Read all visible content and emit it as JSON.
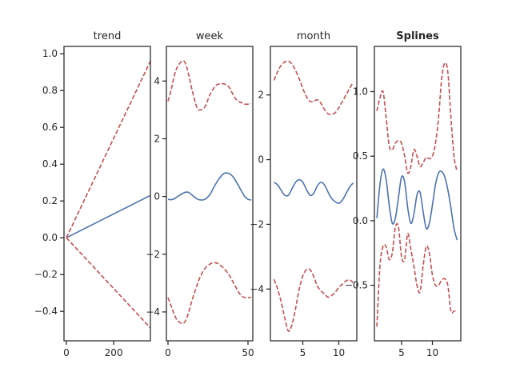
{
  "chart_data": [
    {
      "type": "line",
      "title": "trend",
      "xlim": [
        -10,
        355
      ],
      "ylim": [
        -0.56,
        1.04
      ],
      "xticks": [
        0,
        200
      ],
      "yticks": [
        -0.4,
        -0.2,
        0.0,
        0.2,
        0.4,
        0.6,
        0.8,
        1.0
      ],
      "series": [
        {
          "role": "mean",
          "style": "solid",
          "color": "#4c72b0",
          "x": [
            0,
            355
          ],
          "y": [
            0.0,
            0.23
          ]
        },
        {
          "role": "upper",
          "style": "dashed",
          "color": "#c44e52",
          "x": [
            0,
            355
          ],
          "y": [
            0.0,
            0.96
          ]
        },
        {
          "role": "lower",
          "style": "dashed",
          "color": "#c44e52",
          "x": [
            0,
            355
          ],
          "y": [
            0.0,
            -0.49
          ]
        }
      ]
    },
    {
      "type": "line",
      "title": "week",
      "xlim": [
        -1,
        53
      ],
      "ylim": [
        -5.0,
        5.2
      ],
      "xticks": [
        0,
        50
      ],
      "yticks": [
        -4,
        -2,
        0,
        2,
        4
      ],
      "series": [
        {
          "role": "mean",
          "style": "solid",
          "color": "#4c72b0",
          "x": [
            0,
            2,
            4,
            6,
            9,
            11,
            13,
            15,
            18,
            20,
            23,
            26,
            28,
            30,
            32,
            35,
            38,
            40,
            42,
            44,
            46,
            48,
            50,
            52
          ],
          "y": [
            -0.1,
            -0.11,
            -0.08,
            0.0,
            0.1,
            0.15,
            0.14,
            0.05,
            -0.08,
            -0.12,
            -0.1,
            0.05,
            0.25,
            0.45,
            0.62,
            0.8,
            0.8,
            0.72,
            0.57,
            0.38,
            0.18,
            0.0,
            -0.1,
            -0.12
          ]
        },
        {
          "role": "upper",
          "style": "dashed",
          "color": "#c44e52",
          "x": [
            0,
            2,
            4,
            6,
            9,
            11,
            13,
            15,
            18,
            20,
            23,
            26,
            28,
            30,
            32,
            35,
            38,
            40,
            42,
            44,
            46,
            48,
            50,
            52
          ],
          "y": [
            3.3,
            3.7,
            4.2,
            4.5,
            4.7,
            4.6,
            4.2,
            3.7,
            3.1,
            3.0,
            3.1,
            3.5,
            3.7,
            3.85,
            3.9,
            3.9,
            3.8,
            3.6,
            3.4,
            3.3,
            3.25,
            3.2,
            3.2,
            3.22
          ]
        },
        {
          "role": "lower",
          "style": "dashed",
          "color": "#c44e52",
          "x": [
            0,
            2,
            4,
            6,
            9,
            11,
            13,
            15,
            18,
            20,
            23,
            26,
            28,
            30,
            32,
            35,
            38,
            40,
            42,
            44,
            46,
            48,
            50,
            52
          ],
          "y": [
            -3.5,
            -3.8,
            -4.1,
            -4.3,
            -4.4,
            -4.3,
            -4.0,
            -3.6,
            -3.1,
            -2.8,
            -2.5,
            -2.35,
            -2.3,
            -2.3,
            -2.35,
            -2.5,
            -2.7,
            -2.9,
            -3.1,
            -3.3,
            -3.45,
            -3.5,
            -3.5,
            -3.5
          ]
        }
      ]
    },
    {
      "type": "line",
      "title": "month",
      "xlim": [
        0.5,
        12.5
      ],
      "ylim": [
        -5.6,
        3.5
      ],
      "xticks": [
        5,
        10
      ],
      "yticks": [
        -4,
        -2,
        0,
        2
      ],
      "series": [
        {
          "role": "mean",
          "style": "solid",
          "color": "#4c72b0",
          "x": [
            1,
            1.5,
            2,
            2.5,
            3,
            3.5,
            4,
            4.5,
            5,
            5.5,
            6,
            6.5,
            7,
            7.5,
            8,
            8.5,
            9,
            9.5,
            10,
            10.5,
            11,
            11.5,
            12
          ],
          "y": [
            -0.7,
            -0.78,
            -0.95,
            -1.1,
            -1.1,
            -0.9,
            -0.7,
            -0.62,
            -0.7,
            -0.92,
            -1.1,
            -1.05,
            -0.82,
            -0.7,
            -0.78,
            -1.0,
            -1.2,
            -1.3,
            -1.35,
            -1.25,
            -1.05,
            -0.85,
            -0.72
          ]
        },
        {
          "role": "upper",
          "style": "dashed",
          "color": "#c44e52",
          "x": [
            1,
            1.5,
            2,
            2.5,
            3,
            3.5,
            4,
            4.5,
            5,
            5.5,
            6,
            6.5,
            7,
            7.5,
            8,
            8.5,
            9,
            9.5,
            10,
            10.5,
            11,
            11.5,
            12
          ],
          "y": [
            2.45,
            2.72,
            2.92,
            3.02,
            3.05,
            2.95,
            2.75,
            2.5,
            2.2,
            1.95,
            1.8,
            1.8,
            1.85,
            1.75,
            1.55,
            1.42,
            1.4,
            1.45,
            1.6,
            1.8,
            2.0,
            2.2,
            2.4
          ]
        },
        {
          "role": "lower",
          "style": "dashed",
          "color": "#c44e52",
          "x": [
            1,
            1.5,
            2,
            2.5,
            3,
            3.5,
            4,
            4.5,
            5,
            5.5,
            6,
            6.5,
            7,
            7.5,
            8,
            8.5,
            9,
            9.5,
            10,
            10.5,
            11,
            11.5,
            12
          ],
          "y": [
            -3.7,
            -4.0,
            -4.4,
            -4.9,
            -5.3,
            -5.1,
            -4.6,
            -4.0,
            -3.6,
            -3.4,
            -3.4,
            -3.6,
            -3.9,
            -4.05,
            -4.15,
            -4.25,
            -4.2,
            -4.1,
            -3.95,
            -3.85,
            -3.75,
            -3.72,
            -3.8
          ]
        }
      ]
    },
    {
      "type": "line",
      "title": "Splines",
      "title_bold": true,
      "xlim": [
        0.6,
        14.6
      ],
      "ylim": [
        -0.93,
        1.35
      ],
      "xticks": [
        5,
        10
      ],
      "yticks": [
        -0.5,
        0.0,
        0.5,
        1.0
      ],
      "series": [
        {
          "role": "mean",
          "style": "solid",
          "color": "#4c72b0",
          "x": [
            1.0,
            1.5,
            2.0,
            2.5,
            3.0,
            3.5,
            4.0,
            4.5,
            5.0,
            5.5,
            6.0,
            6.5,
            7.0,
            7.5,
            8.0,
            8.5,
            9.0,
            9.5,
            10.0,
            10.5,
            11.0,
            11.5,
            12.0,
            12.5,
            13.0,
            13.5,
            14.0
          ],
          "y": [
            0.02,
            0.28,
            0.4,
            0.32,
            0.12,
            -0.02,
            0.02,
            0.18,
            0.34,
            0.3,
            0.1,
            -0.02,
            0.05,
            0.2,
            0.22,
            0.07,
            -0.06,
            -0.02,
            0.12,
            0.28,
            0.37,
            0.38,
            0.34,
            0.24,
            0.1,
            -0.06,
            -0.15
          ]
        },
        {
          "role": "upper",
          "style": "dashed",
          "color": "#c44e52",
          "x": [
            1.0,
            1.5,
            2.0,
            2.5,
            3.0,
            3.5,
            4.0,
            4.5,
            5.0,
            5.5,
            6.0,
            6.5,
            7.0,
            7.5,
            8.0,
            8.5,
            9.0,
            9.5,
            10.0,
            10.5,
            11.0,
            11.5,
            12.0,
            12.5,
            13.0,
            13.5,
            14.0
          ],
          "y": [
            0.85,
            0.95,
            1.0,
            0.8,
            0.58,
            0.55,
            0.6,
            0.62,
            0.6,
            0.5,
            0.37,
            0.42,
            0.55,
            0.5,
            0.42,
            0.45,
            0.49,
            0.48,
            0.5,
            0.6,
            0.8,
            1.1,
            1.22,
            1.15,
            0.8,
            0.5,
            0.38
          ]
        },
        {
          "role": "lower",
          "style": "dashed",
          "color": "#c44e52",
          "x": [
            1.0,
            1.5,
            2.0,
            2.5,
            3.0,
            3.5,
            4.0,
            4.5,
            5.0,
            5.5,
            6.0,
            6.5,
            7.0,
            7.5,
            8.0,
            8.5,
            9.0,
            9.5,
            10.0,
            10.5,
            11.0,
            11.5,
            12.0,
            12.5,
            13.0,
            13.5,
            14.0
          ],
          "y": [
            -0.82,
            -0.35,
            -0.2,
            -0.2,
            -0.3,
            -0.25,
            -0.05,
            -0.05,
            -0.28,
            -0.3,
            -0.1,
            -0.22,
            -0.35,
            -0.5,
            -0.55,
            -0.35,
            -0.2,
            -0.25,
            -0.42,
            -0.5,
            -0.5,
            -0.46,
            -0.45,
            -0.5,
            -0.7,
            -0.7,
            -0.7
          ]
        }
      ]
    }
  ]
}
